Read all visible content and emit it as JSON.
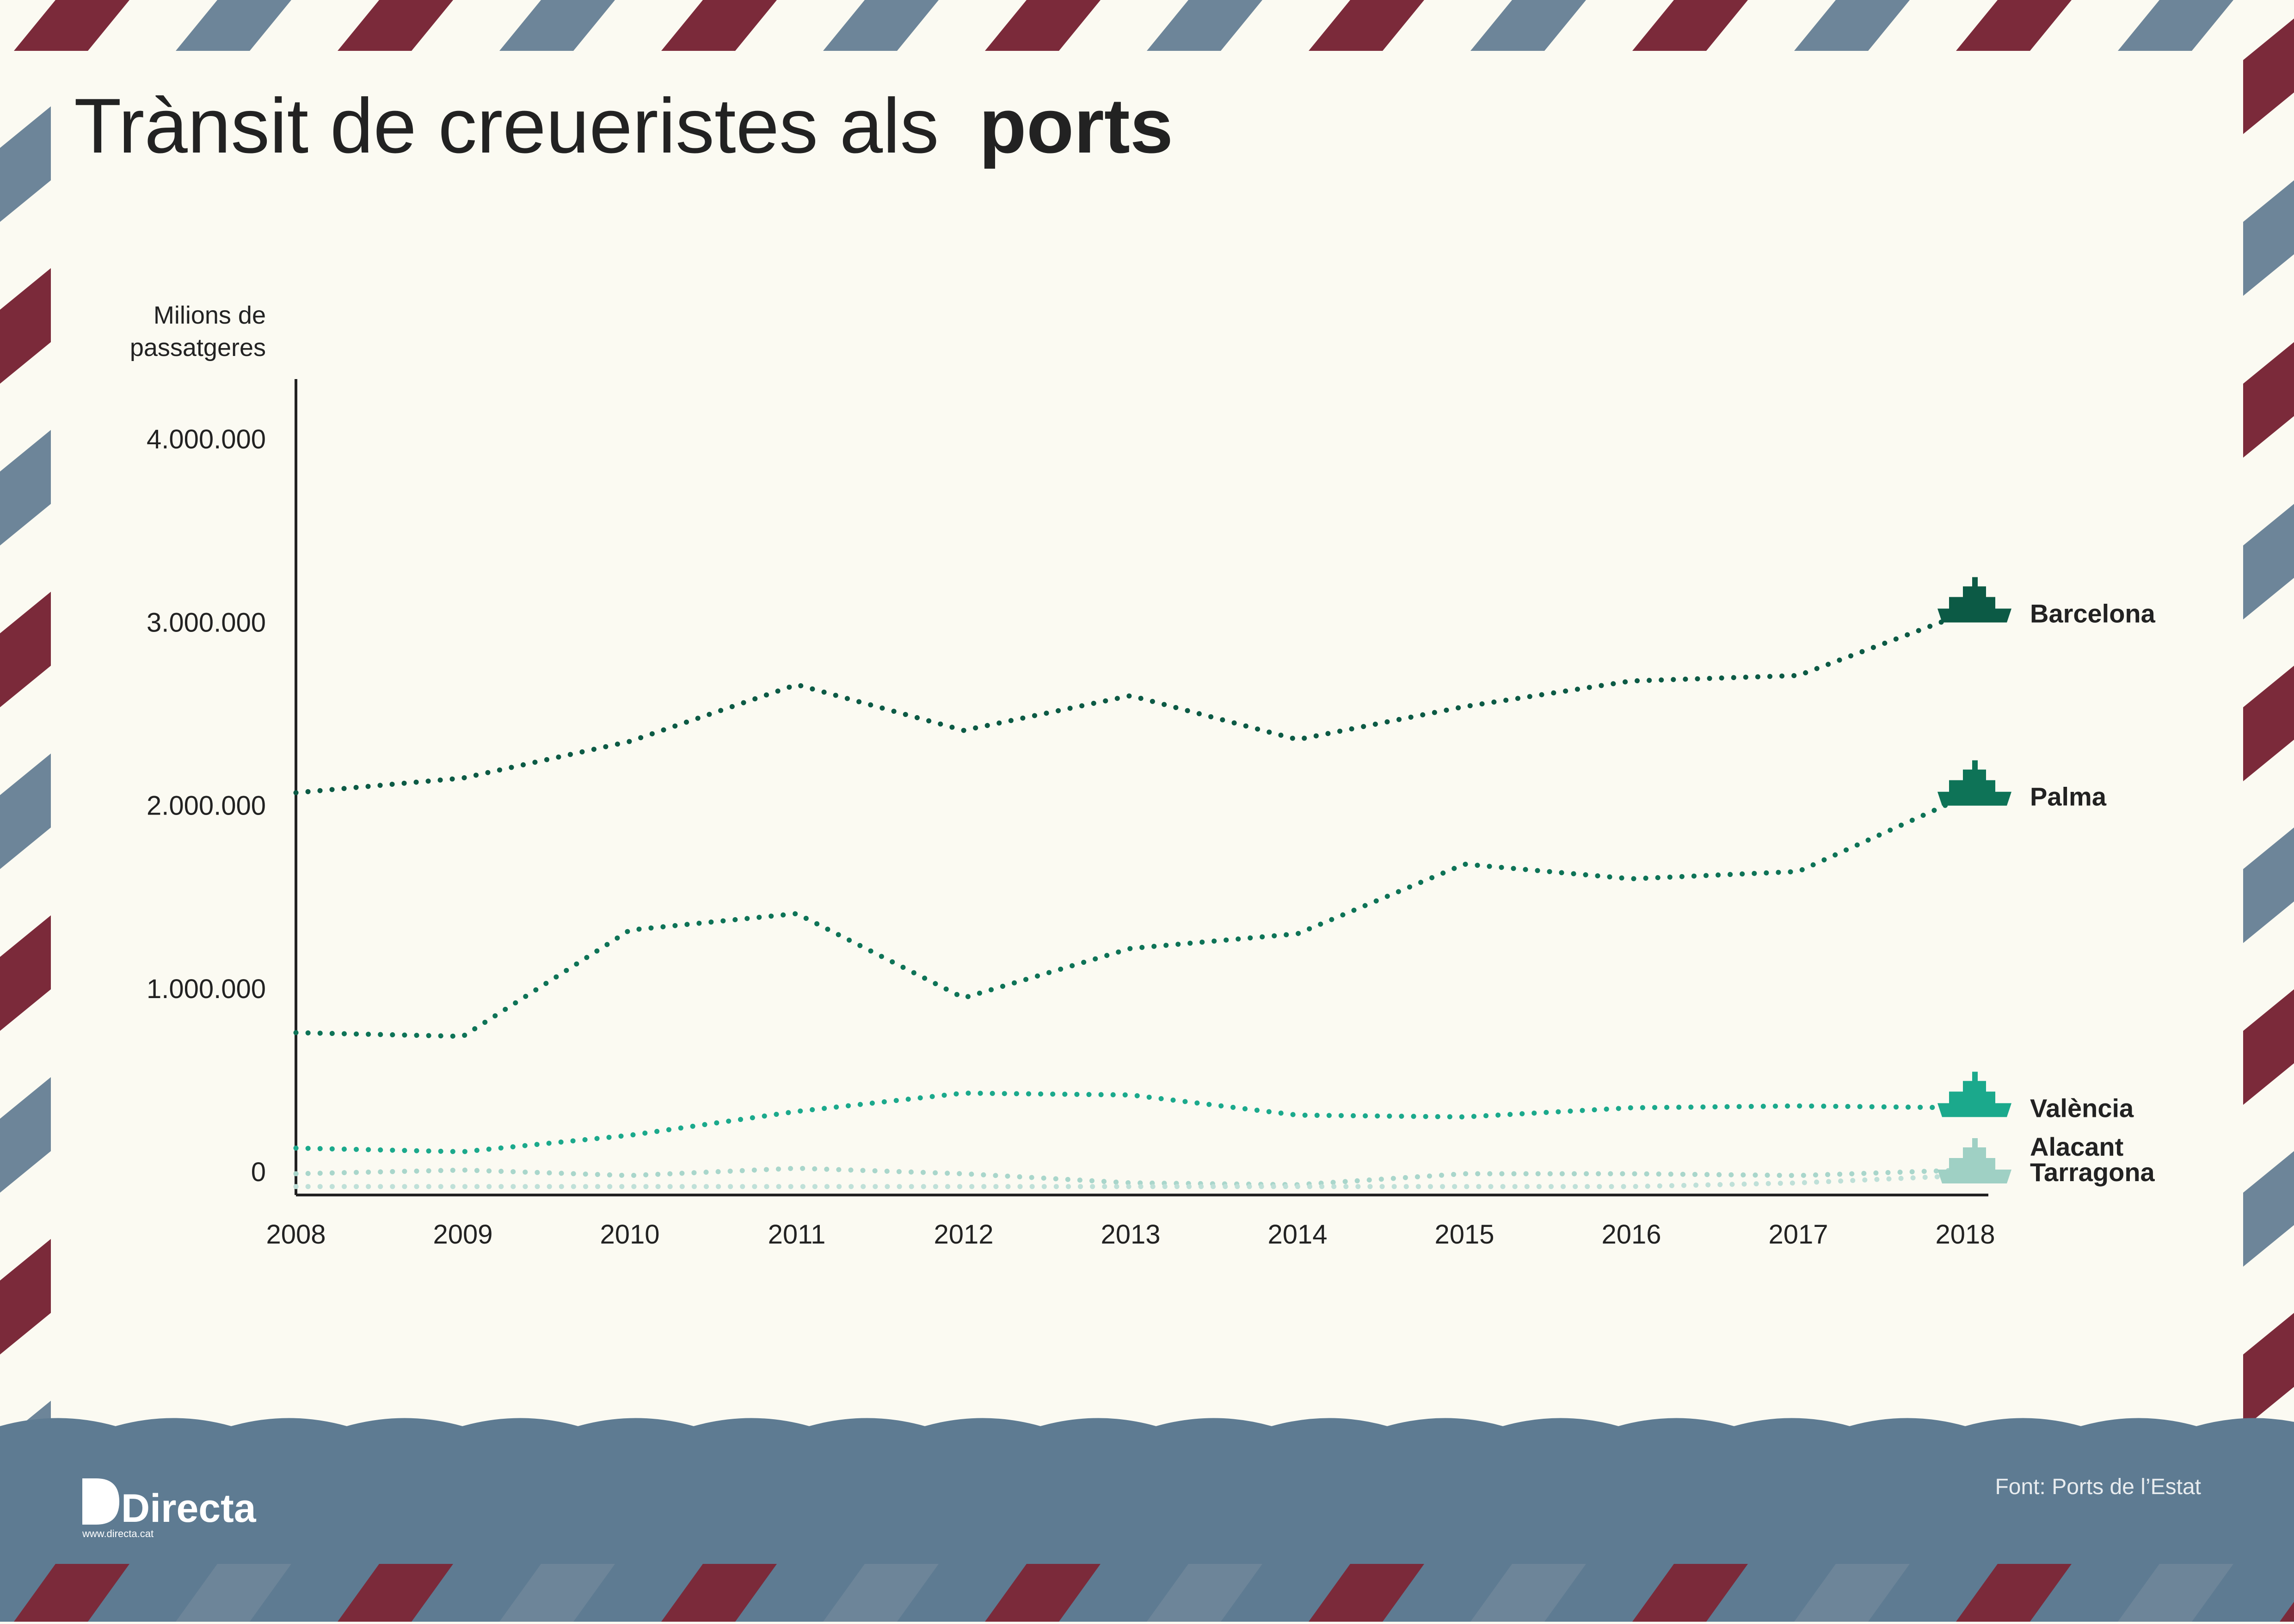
{
  "title": {
    "regular": "Trànsit de creueristes als",
    "bold": "ports"
  },
  "source": "Font: Ports de l’Estat",
  "brand": {
    "name": "Directa",
    "url": "www.directa.cat"
  },
  "colors": {
    "background": "#fbfaf2",
    "sea": "#5e7b92",
    "stripe_red": "#7b2a3a",
    "stripe_blue": "#6d8599",
    "text": "#222222"
  },
  "chart_data": {
    "type": "line",
    "ylabel": "Milions de passatgeres",
    "xlabel": "",
    "x": [
      2008,
      2009,
      2010,
      2011,
      2012,
      2013,
      2014,
      2015,
      2016,
      2017,
      2018
    ],
    "x_tick_labels": [
      "2008",
      "2009",
      "2010",
      "2011",
      "2012",
      "2013",
      "2014",
      "2015",
      "2016",
      "2017",
      "2018"
    ],
    "y_tick_values": [
      0,
      1000000,
      2000000,
      3000000,
      4000000
    ],
    "y_tick_labels": [
      "0",
      "1.000.000",
      "2.000.000",
      "3.000.000",
      "4.000.000"
    ],
    "ylim": [
      -100000,
      4300000
    ],
    "grid": false,
    "legend": "direct labels at line ends",
    "series": [
      {
        "name": "Barcelona",
        "color": "#0c5a45",
        "values": [
          2070000,
          2150000,
          2350000,
          2660000,
          2410000,
          2600000,
          2360000,
          2540000,
          2680000,
          2710000,
          3050000
        ]
      },
      {
        "name": "Palma",
        "color": "#0e7357",
        "values": [
          760000,
          740000,
          1320000,
          1410000,
          950000,
          1220000,
          1300000,
          1680000,
          1600000,
          1640000,
          2050000
        ]
      },
      {
        "name": "València",
        "color": "#1ba98c",
        "values": [
          130000,
          110000,
          200000,
          330000,
          430000,
          420000,
          310000,
          300000,
          350000,
          360000,
          350000
        ]
      },
      {
        "name": "Alacant",
        "color": "#a9d6cb",
        "values": [
          -10000,
          10000,
          -20000,
          20000,
          -10000,
          -60000,
          -70000,
          -10000,
          -10000,
          -20000,
          10000
        ]
      },
      {
        "name": "Tarragona",
        "color": "#bfe0d8",
        "values": [
          -80000,
          -80000,
          -80000,
          -80000,
          -80000,
          -80000,
          -80000,
          -80000,
          -80000,
          -60000,
          -20000
        ]
      }
    ]
  }
}
